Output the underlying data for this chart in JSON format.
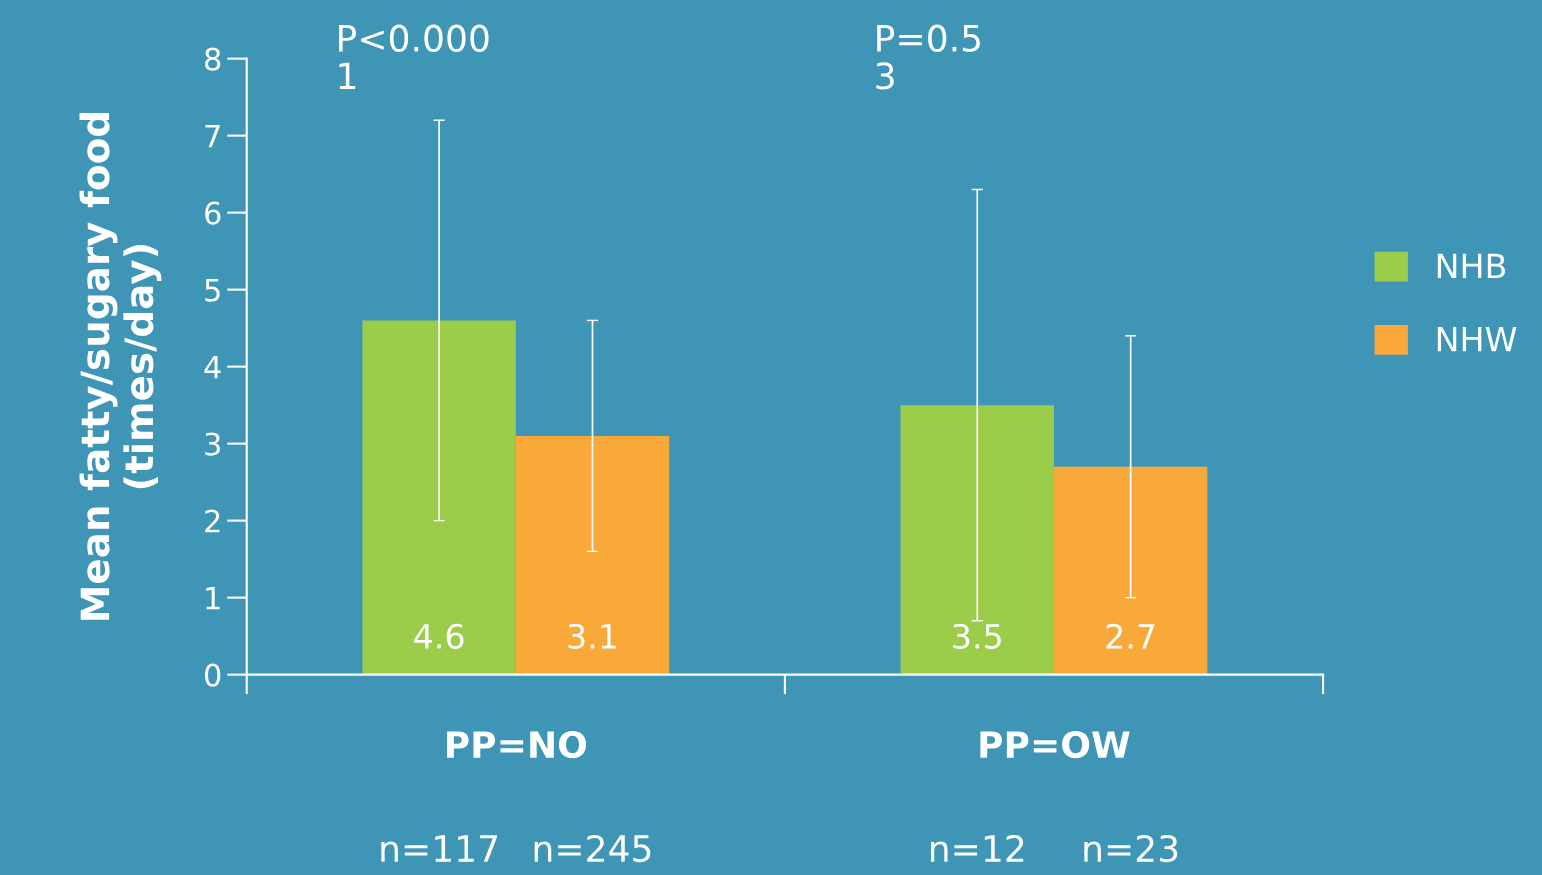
{
  "chart_data": {
    "type": "bar",
    "ylabel": "Mean fatty/sugary food\n(times/day)",
    "categories": [
      "PP=NO",
      "PP=OW"
    ],
    "series": [
      {
        "name": "NHB",
        "color": "#9bcd4b",
        "values": [
          4.6,
          3.5
        ],
        "errors": [
          [
            2.0,
            7.2
          ],
          [
            0.7,
            6.3
          ]
        ]
      },
      {
        "name": "NHW",
        "color": "#f9a83a",
        "values": [
          3.1,
          2.7
        ],
        "errors": [
          [
            1.6,
            4.6
          ],
          [
            1.0,
            4.4
          ]
        ]
      }
    ],
    "ylim": [
      0,
      8
    ],
    "yticks": [
      0,
      1,
      2,
      3,
      4,
      5,
      6,
      7,
      8
    ],
    "data_labels": true,
    "grid": false,
    "legend": "right",
    "annotations": [
      "P<0.000\n1",
      "P=0.5\n3",
      "n=117",
      "n=245",
      "n=12",
      "n=23"
    ]
  }
}
